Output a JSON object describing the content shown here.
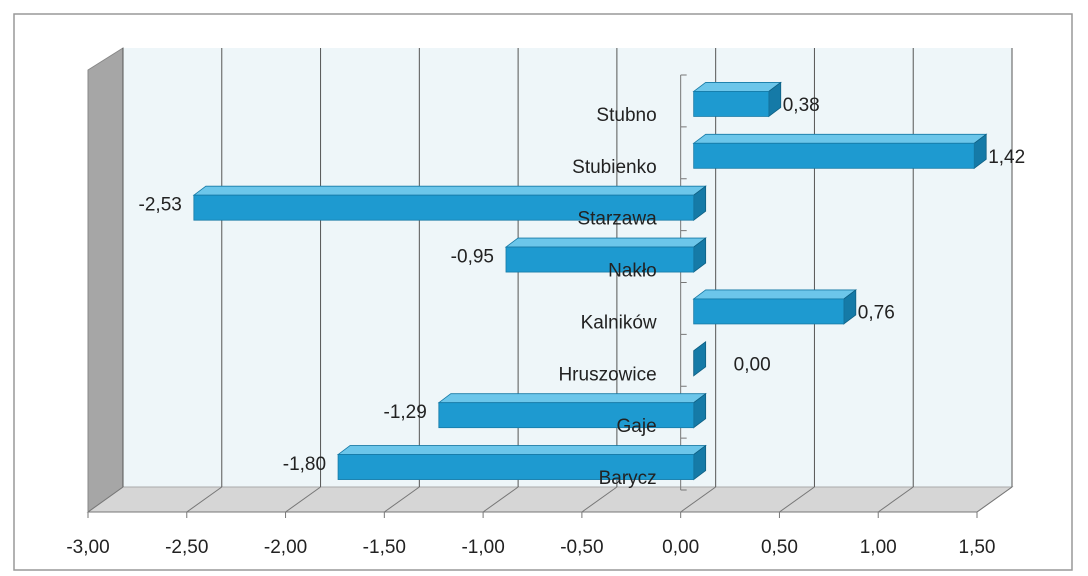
{
  "chart_data": {
    "type": "bar",
    "orientation": "horizontal",
    "categories": [
      "Stubno",
      "Stubienko",
      "Starzawa",
      "Nakło",
      "Kalników",
      "Hruszowice",
      "Gaje",
      "Barycz"
    ],
    "values": [
      0.38,
      1.42,
      -2.53,
      -0.95,
      0.76,
      0.0,
      -1.29,
      -1.8
    ],
    "value_labels": [
      "0,38",
      "1,42",
      "-2,53",
      "-0,95",
      "0,76",
      "0,00",
      "-1,29",
      "-1,80"
    ],
    "color": "#1e9ad0",
    "xlim": [
      -3,
      1.5
    ],
    "xticks": [
      {
        "value": -3,
        "label": "-3,00"
      },
      {
        "value": -2.5,
        "label": "-2,50"
      },
      {
        "value": -2,
        "label": "-2,00"
      },
      {
        "value": -1.5,
        "label": "-1,50"
      },
      {
        "value": -1,
        "label": "-1,00"
      },
      {
        "value": -0.5,
        "label": "-0,50"
      },
      {
        "value": 0,
        "label": "0,00"
      },
      {
        "value": 0.5,
        "label": "0,50"
      },
      {
        "value": 1,
        "label": "1,00"
      },
      {
        "value": 1.5,
        "label": "1,50"
      }
    ],
    "grid": true
  }
}
